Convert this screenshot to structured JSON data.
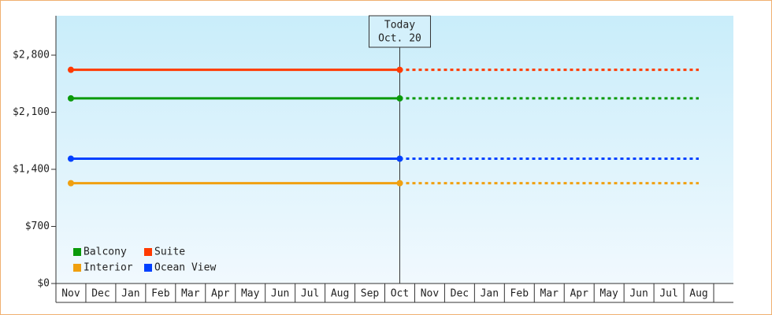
{
  "chart_data": {
    "type": "line",
    "categories": [
      "Nov",
      "Dec",
      "Jan",
      "Feb",
      "Mar",
      "Apr",
      "May",
      "Jun",
      "Jul",
      "Aug",
      "Sep",
      "Oct",
      "Nov",
      "Dec",
      "Jan",
      "Feb",
      "Mar",
      "Apr",
      "May",
      "Jun",
      "Jul",
      "Aug"
    ],
    "annotation": [
      "Today",
      "Oct. 20"
    ],
    "ylim": [
      0,
      3283
    ],
    "yticks": [
      {
        "value": 0,
        "label": "$0"
      },
      {
        "value": 700,
        "label": "$700"
      },
      {
        "value": 1400,
        "label": "$1,400"
      },
      {
        "value": 2100,
        "label": "$2,100"
      },
      {
        "value": 2800,
        "label": "$2,800"
      }
    ],
    "legend": "bottom-left",
    "series": [
      {
        "name": "Balcony",
        "color": "#0a9a0a",
        "values": [
          2270,
          2270,
          2270,
          2270,
          2270,
          2270,
          2270,
          2270,
          2270,
          2270,
          2270,
          2270,
          null,
          null,
          null,
          null,
          null,
          null,
          null,
          null,
          null,
          null
        ],
        "forecast": [
          null,
          null,
          null,
          null,
          null,
          null,
          null,
          null,
          null,
          null,
          null,
          2270,
          2270,
          2270,
          2270,
          2270,
          2270,
          2270,
          2270,
          2270,
          2270,
          2270
        ]
      },
      {
        "name": "Suite",
        "color": "#ff3a00",
        "values": [
          2620,
          2620,
          2620,
          2620,
          2620,
          2620,
          2620,
          2620,
          2620,
          2620,
          2620,
          2620,
          null,
          null,
          null,
          null,
          null,
          null,
          null,
          null,
          null,
          null
        ],
        "forecast": [
          null,
          null,
          null,
          null,
          null,
          null,
          null,
          null,
          null,
          null,
          null,
          2620,
          2620,
          2620,
          2620,
          2620,
          2620,
          2620,
          2620,
          2620,
          2620,
          2620
        ]
      },
      {
        "name": "Interior",
        "color": "#f0a010",
        "values": [
          1230,
          1230,
          1230,
          1230,
          1230,
          1230,
          1230,
          1230,
          1230,
          1230,
          1230,
          1230,
          null,
          null,
          null,
          null,
          null,
          null,
          null,
          null,
          null,
          null
        ],
        "forecast": [
          null,
          null,
          null,
          null,
          null,
          null,
          null,
          null,
          null,
          null,
          null,
          1230,
          1230,
          1230,
          1230,
          1230,
          1230,
          1230,
          1230,
          1230,
          1230,
          1230
        ]
      },
      {
        "name": "Ocean View",
        "color": "#0040ff",
        "values": [
          1530,
          1530,
          1530,
          1530,
          1530,
          1530,
          1530,
          1530,
          1530,
          1530,
          1530,
          1530,
          null,
          null,
          null,
          null,
          null,
          null,
          null,
          null,
          null,
          null
        ],
        "forecast": [
          null,
          null,
          null,
          null,
          null,
          null,
          null,
          null,
          null,
          null,
          null,
          1530,
          1530,
          1530,
          1530,
          1530,
          1530,
          1530,
          1530,
          1530,
          1530,
          1530
        ]
      }
    ]
  }
}
